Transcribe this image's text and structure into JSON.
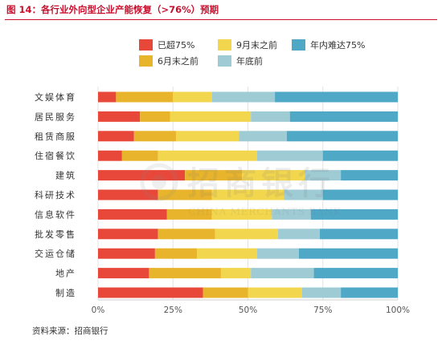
{
  "figure": {
    "title": "图 14：各行业外向型企业产能恢复（>76%）预期",
    "source": "资料来源：招商银行"
  },
  "watermark": {
    "cn": "招商银行",
    "en": "CHINA MERCHANTS BANK"
  },
  "chart_data": {
    "type": "bar",
    "orientation": "horizontal",
    "stacked": true,
    "percent_stacked": true,
    "categories": [
      "文娱体育",
      "居民服务",
      "租赁商服",
      "住宿餐饮",
      "建筑",
      "科研技术",
      "信息软件",
      "批发零售",
      "交运仓储",
      "地产",
      "制造"
    ],
    "series": [
      {
        "name": "已超75%",
        "color": "#e8483a",
        "values": [
          6,
          14,
          12,
          8,
          29,
          20,
          23,
          20,
          19,
          17,
          35
        ]
      },
      {
        "name": "6月末之前",
        "color": "#e8b42c",
        "values": [
          19,
          10,
          14,
          12,
          19,
          18,
          15,
          19,
          14,
          24,
          15
        ]
      },
      {
        "name": "9月末之前",
        "color": "#f2d64e",
        "values": [
          13,
          27,
          21,
          33,
          21,
          24,
          20,
          21,
          20,
          10,
          18
        ]
      },
      {
        "name": "年底前",
        "color": "#9ecbd4",
        "values": [
          21,
          13,
          16,
          22,
          12,
          13,
          13,
          14,
          14,
          21,
          13
        ]
      },
      {
        "name": "年内难达75%",
        "color": "#4ea8c6",
        "values": [
          41,
          36,
          37,
          25,
          19,
          25,
          29,
          26,
          33,
          28,
          19
        ]
      }
    ],
    "xlim": [
      0,
      100
    ],
    "x_ticks": [
      "0%",
      "25%",
      "50%",
      "75%",
      "100%"
    ],
    "grid": true,
    "legend_position": "top"
  }
}
